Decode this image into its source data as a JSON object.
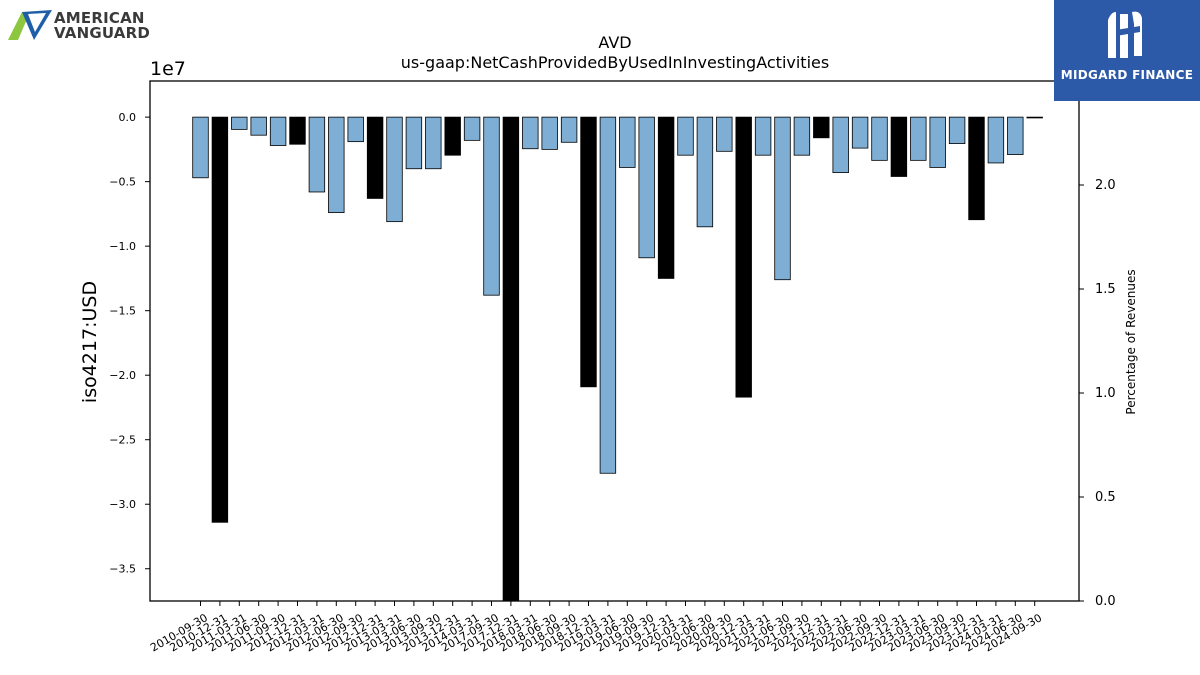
{
  "logos": {
    "left": {
      "line1": "AMERICAN",
      "line2": "VANGUARD",
      "icon": "american-vanguard-logo"
    },
    "right": {
      "text": "MIDGARD FINANCE",
      "icon": "midgard-finance-logo"
    }
  },
  "chart_data": {
    "type": "bar",
    "title": "AVD",
    "subtitle": "us-gaap:NetCashProvidedByUsedInInvestingActivities",
    "ylabel": "iso4217:USD",
    "y_offset_label": "1e7",
    "y2label": "Percentage of Revenues",
    "ylim": [
      -37500000,
      2800000
    ],
    "y2lim": [
      0,
      2.5
    ],
    "yticks": [
      0,
      -5000000,
      -10000000,
      -15000000,
      -20000000,
      -25000000,
      -30000000,
      -35000000
    ],
    "ytick_labels": [
      "0.0",
      "−0.5",
      "−1.0",
      "−1.5",
      "−2.0",
      "−2.5",
      "−3.0",
      "−3.5"
    ],
    "y2ticks": [
      0,
      0.5,
      1.0,
      1.5,
      2.0,
      2.5
    ],
    "y2tick_labels": [
      "0.0",
      "0.5",
      "1.0",
      "1.5",
      "2.0",
      "2.5"
    ],
    "grid": false,
    "colors": {
      "quarterly": "#7eaed4",
      "annual": "#000000"
    },
    "categories": [
      "2010-09-30",
      "2010-12-31",
      "2011-03-31",
      "2011-06-30",
      "2011-09-30",
      "2011-12-31",
      "2012-03-31",
      "2012-06-30",
      "2012-09-30",
      "2012-12-31",
      "2013-03-31",
      "2013-06-30",
      "2013-09-30",
      "2013-12-31",
      "2014-03-31",
      "2017-09-30",
      "2017-12-31",
      "2018-03-31",
      "2018-06-30",
      "2018-09-30",
      "2018-12-31",
      "2019-03-31",
      "2019-06-30",
      "2019-09-30",
      "2019-12-31",
      "2020-03-31",
      "2020-06-30",
      "2020-09-30",
      "2020-12-31",
      "2021-03-31",
      "2021-06-30",
      "2021-09-30",
      "2021-12-31",
      "2022-03-31",
      "2022-06-30",
      "2022-09-30",
      "2022-12-31",
      "2023-03-31",
      "2023-06-30",
      "2023-09-30",
      "2023-12-31",
      "2024-03-31",
      "2024-06-30",
      "2024-09-30"
    ],
    "values": [
      -4700000,
      -31400000,
      -950000,
      -1400000,
      -2200000,
      -2100000,
      -5800000,
      -7400000,
      -1900000,
      -6300000,
      -8100000,
      -4000000,
      -4000000,
      -2950000,
      -1800000,
      -13800000,
      -37500000,
      -2450000,
      -2500000,
      -1950000,
      -20900000,
      -27600000,
      -3900000,
      -10900000,
      -12500000,
      -2950000,
      -8500000,
      -2650000,
      -21700000,
      -2950000,
      -12600000,
      -2950000,
      -1600000,
      -4300000,
      -2400000,
      -3350000,
      -4600000,
      -3350000,
      -3900000,
      -2050000,
      -7950000,
      -3550000,
      -2900000,
      -50000
    ],
    "is_annual": [
      false,
      true,
      false,
      false,
      false,
      true,
      false,
      false,
      false,
      true,
      false,
      false,
      false,
      true,
      false,
      false,
      true,
      false,
      false,
      false,
      true,
      false,
      false,
      false,
      true,
      false,
      false,
      false,
      true,
      false,
      false,
      false,
      true,
      false,
      false,
      false,
      true,
      false,
      false,
      false,
      true,
      false,
      false,
      false
    ]
  }
}
